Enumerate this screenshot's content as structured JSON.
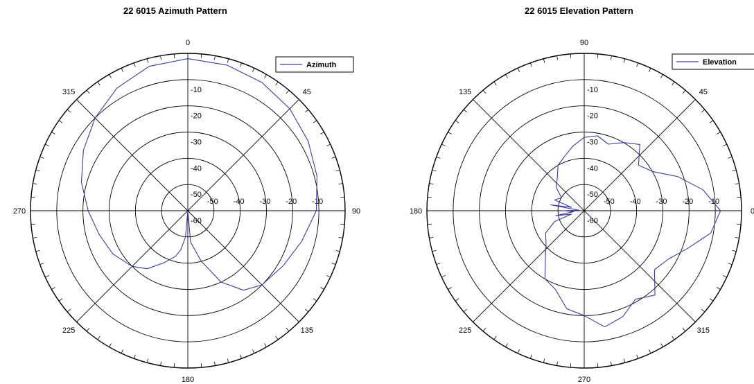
{
  "chart_data": [
    {
      "type": "polar-line",
      "title": "22 6015 Azimuth Pattern",
      "legend": "Azimuth",
      "legend_position": "top-right",
      "radial_ticks": [
        "-10",
        "-20",
        "-30",
        "-40",
        "-50",
        "-60"
      ],
      "horizontal_ticks": [
        "-50",
        "-40",
        "-30",
        "-20",
        "-10"
      ],
      "angle_labels": [
        "0",
        "45",
        "90",
        "135",
        "180",
        "225",
        "270",
        "315"
      ],
      "angle_label_degrees": [
        0,
        45,
        90,
        135,
        180,
        225,
        270,
        315
      ],
      "grid": true,
      "series": [
        {
          "name": "Azimuth",
          "color": "#3a3aa0",
          "angle_deg": [
            0,
            15,
            30,
            45,
            60,
            75,
            90,
            105,
            120,
            135,
            145,
            155,
            165,
            170,
            175,
            180,
            185,
            190,
            195,
            205,
            215,
            225,
            240,
            255,
            270,
            285,
            300,
            315,
            330,
            345,
            360
          ],
          "level_db": [
            -2,
            -2.5,
            -3.5,
            -5,
            -7,
            -9,
            -11,
            -15,
            -18,
            -20,
            -23,
            -30,
            -40,
            -45,
            -48,
            -60,
            -50,
            -45,
            -42,
            -38,
            -33,
            -30,
            -27,
            -25,
            -22,
            -18,
            -14,
            -10,
            -6,
            -3,
            -2
          ]
        }
      ]
    },
    {
      "type": "polar-line",
      "title": "22 6015 Elevation Pattern",
      "legend": "Elevation",
      "legend_position": "top-right",
      "radial_ticks": [
        "-10",
        "-20",
        "-30",
        "-40",
        "-50",
        "-60"
      ],
      "horizontal_ticks": [
        "-50",
        "-40",
        "-30",
        "-20",
        "-10"
      ],
      "angle_labels": [
        "90",
        "45",
        "0",
        "315",
        "270",
        "225",
        "180",
        "135"
      ],
      "angle_label_degrees": [
        90,
        45,
        0,
        315,
        270,
        225,
        180,
        135
      ],
      "grid": true,
      "series": [
        {
          "name": "Elevation",
          "color": "#3a3aa0",
          "angle_deg": [
            0,
            10,
            20,
            30,
            40,
            50,
            60,
            70,
            80,
            90,
            100,
            110,
            120,
            130,
            140,
            150,
            160,
            165,
            170,
            175,
            180,
            185,
            190,
            195,
            200,
            210,
            220,
            230,
            240,
            250,
            260,
            270,
            280,
            290,
            300,
            310,
            320,
            330,
            340,
            350,
            360
          ],
          "level_db": [
            -8,
            -14,
            -22,
            -30,
            -33,
            -27,
            -30,
            -33,
            -31,
            -32,
            -35,
            -38,
            -40,
            -44,
            -46,
            -50,
            -48,
            -55,
            -47,
            -58,
            -52,
            -56,
            -49,
            -55,
            -48,
            -43,
            -41,
            -37,
            -30,
            -28,
            -22,
            -20,
            -15,
            -17,
            -21,
            -18,
            -25,
            -23,
            -18,
            -11,
            -8
          ]
        }
      ]
    }
  ]
}
